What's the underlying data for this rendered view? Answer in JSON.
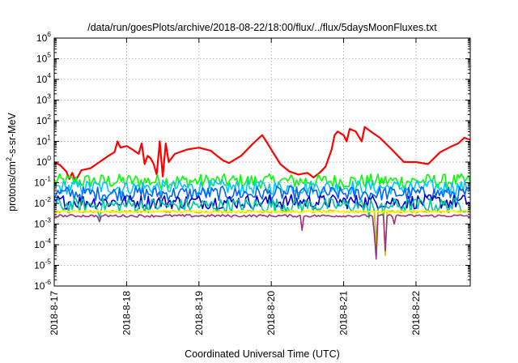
{
  "chart_data": {
    "type": "line",
    "title": "/data/run/goesPlots/archive/2018-08-22/18:00/flux/../flux/5daysMoonFluxes.txt",
    "xlabel": "Coordinated Universal Time (UTC)",
    "ylabel": {
      "prefix": "protons/cm",
      "sup": "2",
      "suffix": "-s-sr-MeV"
    },
    "y_scale": "log",
    "ylim": [
      1e-06,
      1000000.0
    ],
    "y_ticks": [
      {
        "value": 1e-06,
        "base": "10",
        "exp": "-6"
      },
      {
        "value": 1e-05,
        "base": "10",
        "exp": "-5"
      },
      {
        "value": 0.0001,
        "base": "10",
        "exp": "-4"
      },
      {
        "value": 0.001,
        "base": "10",
        "exp": "-3"
      },
      {
        "value": 0.01,
        "base": "10",
        "exp": "-2"
      },
      {
        "value": 0.1,
        "base": "10",
        "exp": "-1"
      },
      {
        "value": 1,
        "base": "10",
        "exp": "0"
      },
      {
        "value": 10,
        "base": "10",
        "exp": "1"
      },
      {
        "value": 100,
        "base": "10",
        "exp": "2"
      },
      {
        "value": 1000,
        "base": "10",
        "exp": "3"
      },
      {
        "value": 10000,
        "base": "10",
        "exp": "4"
      },
      {
        "value": 100000,
        "base": "10",
        "exp": "5"
      },
      {
        "value": 1000000,
        "base": "10",
        "exp": "6"
      }
    ],
    "xlim": [
      "2018-08-17T00:00",
      "2018-08-22T18:00"
    ],
    "x_ticks": [
      {
        "value": "2018-08-17T00:00",
        "label": "2018-8-17"
      },
      {
        "value": "2018-08-18T00:00",
        "label": "2018-8-18"
      },
      {
        "value": "2018-08-19T00:00",
        "label": "2018-8-19"
      },
      {
        "value": "2018-08-20T00:00",
        "label": "2018-8-20"
      },
      {
        "value": "2018-08-21T00:00",
        "label": "2018-8-21"
      },
      {
        "value": "2018-08-22T00:00",
        "label": "2018-8-22"
      }
    ],
    "grid": true,
    "legend": "none",
    "series": [
      {
        "color": "#ff0000",
        "points": [
          [
            "2018-08-17T00:00",
            1.0
          ],
          [
            "2018-08-17T02:00",
            0.7
          ],
          [
            "2018-08-17T04:00",
            0.35
          ],
          [
            "2018-08-17T05:00",
            0.15
          ],
          [
            "2018-08-17T06:00",
            0.3
          ],
          [
            "2018-08-17T07:00",
            0.12
          ],
          [
            "2018-08-17T09:00",
            0.4
          ],
          [
            "2018-08-17T12:00",
            0.5
          ],
          [
            "2018-08-17T15:00",
            1.0
          ],
          [
            "2018-08-17T18:00",
            2.0
          ],
          [
            "2018-08-17T20:00",
            3.0
          ],
          [
            "2018-08-17T21:00",
            10
          ],
          [
            "2018-08-17T22:00",
            5
          ],
          [
            "2018-08-18T00:00",
            6
          ],
          [
            "2018-08-18T02:00",
            4
          ],
          [
            "2018-08-18T04:00",
            2.5
          ],
          [
            "2018-08-18T05:00",
            8
          ],
          [
            "2018-08-18T06:00",
            0.8
          ],
          [
            "2018-08-18T07:00",
            2.0
          ],
          [
            "2018-08-18T08:00",
            1.5
          ],
          [
            "2018-08-18T09:00",
            0.8
          ],
          [
            "2018-08-18T10:00",
            0.25
          ],
          [
            "2018-08-18T11:00",
            10
          ],
          [
            "2018-08-18T12:00",
            0.2
          ],
          [
            "2018-08-18T13:00",
            8
          ],
          [
            "2018-08-18T14:00",
            1.0
          ],
          [
            "2018-08-18T16:00",
            2.5
          ],
          [
            "2018-08-18T20:00",
            4.0
          ],
          [
            "2018-08-19T00:00",
            5.0
          ],
          [
            "2018-08-19T04:00",
            3.5
          ],
          [
            "2018-08-19T06:00",
            2.0
          ],
          [
            "2018-08-19T08:00",
            1.2
          ],
          [
            "2018-08-19T10:00",
            0.9
          ],
          [
            "2018-08-19T14:00",
            2.0
          ],
          [
            "2018-08-19T18:00",
            8.0
          ],
          [
            "2018-08-19T20:00",
            15
          ],
          [
            "2018-08-19T21:00",
            20
          ],
          [
            "2018-08-19T22:00",
            12
          ],
          [
            "2018-08-20T00:00",
            4.0
          ],
          [
            "2018-08-20T03:00",
            0.8
          ],
          [
            "2018-08-20T06:00",
            0.35
          ],
          [
            "2018-08-20T09:00",
            0.25
          ],
          [
            "2018-08-20T12:00",
            0.3
          ],
          [
            "2018-08-20T14:00",
            0.18
          ],
          [
            "2018-08-20T16:00",
            0.3
          ],
          [
            "2018-08-20T18:00",
            0.6
          ],
          [
            "2018-08-20T20:00",
            4.0
          ],
          [
            "2018-08-20T21:00",
            20
          ],
          [
            "2018-08-20T22:00",
            30
          ],
          [
            "2018-08-21T00:00",
            20
          ],
          [
            "2018-08-21T01:00",
            10
          ],
          [
            "2018-08-21T02:00",
            40
          ],
          [
            "2018-08-21T04:00",
            30
          ],
          [
            "2018-08-21T06:00",
            10
          ],
          [
            "2018-08-21T07:00",
            50
          ],
          [
            "2018-08-21T09:00",
            30
          ],
          [
            "2018-08-21T12:00",
            15
          ],
          [
            "2018-08-21T16:00",
            4.0
          ],
          [
            "2018-08-21T20:00",
            1.0
          ],
          [
            "2018-08-22T00:00",
            1.0
          ],
          [
            "2018-08-22T04:00",
            0.8
          ],
          [
            "2018-08-22T08:00",
            3.0
          ],
          [
            "2018-08-22T12:00",
            6.0
          ],
          [
            "2018-08-22T14:00",
            8.0
          ],
          [
            "2018-08-22T16:00",
            15
          ],
          [
            "2018-08-22T18:00",
            12
          ]
        ]
      },
      {
        "color": "#00ff00",
        "base": 0.12,
        "dips": []
      },
      {
        "color": "#00c8ff",
        "base": 0.06,
        "dips": []
      },
      {
        "color": "#0064ff",
        "base": 0.03,
        "dips": []
      },
      {
        "color": "#0000c8",
        "base": 0.012,
        "dips": []
      },
      {
        "color": "#00c8a0",
        "base": 0.008,
        "dips": [
          [
            "2018-08-17T15:00",
            0.002
          ],
          [
            "2018-08-21T08:30",
            0.002
          ],
          [
            "2018-08-21T11:00",
            0.0001
          ],
          [
            "2018-08-21T13:00",
            0.002
          ]
        ]
      },
      {
        "color": "#c8c800",
        "base": 0.004,
        "dips": [
          [
            "2018-08-21T11:00",
            8e-05
          ],
          [
            "2018-08-21T14:00",
            3e-05
          ]
        ]
      },
      {
        "color": "#ffff00",
        "base": 0.004,
        "dips": []
      },
      {
        "color": "#a0307a",
        "base": 0.0025,
        "dips": [
          [
            "2018-08-17T15:00",
            0.0013
          ],
          [
            "2018-08-20T10:00",
            0.0005
          ],
          [
            "2018-08-21T10:00",
            0.0003
          ],
          [
            "2018-08-21T11:00",
            2e-05
          ],
          [
            "2018-08-21T14:00",
            5e-05
          ],
          [
            "2018-08-21T17:00",
            0.001
          ]
        ]
      }
    ]
  }
}
